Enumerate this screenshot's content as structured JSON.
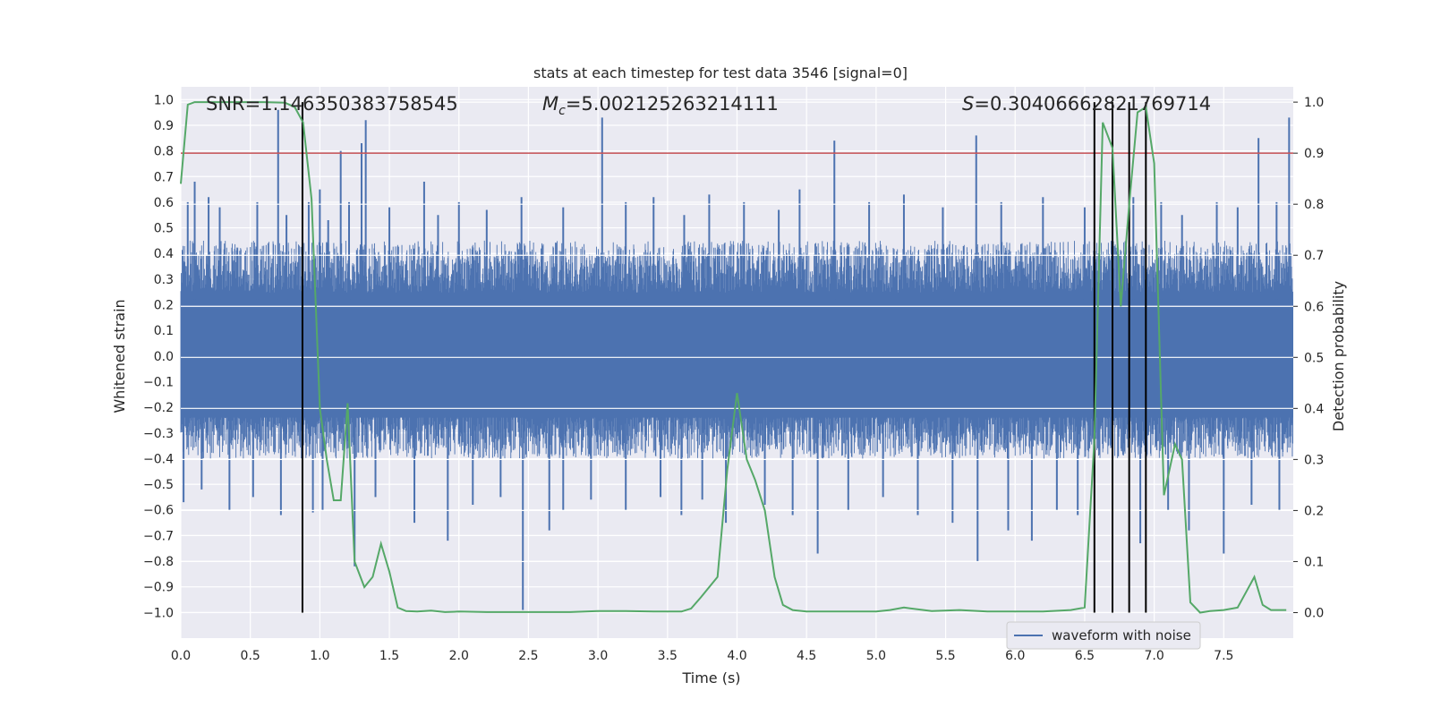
{
  "chart_data": {
    "type": "line",
    "title": "stats at each timestep for test data 3546 [signal=0]",
    "xlabel": "Time (s)",
    "ylabel": "Whitened strain",
    "y2label": "Detection probability",
    "xlim": [
      0,
      8
    ],
    "ylim": [
      -1.1,
      1.05
    ],
    "y2lim": [
      -0.05,
      1.03
    ],
    "xticks": [
      0.0,
      0.5,
      1.0,
      1.5,
      2.0,
      2.5,
      3.0,
      3.5,
      4.0,
      4.5,
      5.0,
      5.5,
      6.0,
      6.5,
      7.0,
      7.5
    ],
    "xtick_labels": [
      "0.0",
      "0.5",
      "1.0",
      "1.5",
      "2.0",
      "2.5",
      "3.0",
      "3.5",
      "4.0",
      "4.5",
      "5.0",
      "5.5",
      "6.0",
      "6.5",
      "7.0",
      "7.5"
    ],
    "yticks": [
      1.0,
      0.9,
      0.8,
      0.7,
      0.6,
      0.5,
      0.4,
      0.3,
      0.2,
      0.1,
      0.0,
      -0.1,
      -0.2,
      -0.3,
      -0.4,
      -0.5,
      -0.6,
      -0.7,
      -0.8,
      -0.9,
      -1.0
    ],
    "ytick_labels": [
      "1.0",
      "0.9",
      "0.8",
      "0.7",
      "0.6",
      "0.5",
      "0.4",
      "0.3",
      "0.2",
      "0.1",
      "0.0",
      "−0.1",
      "−0.2",
      "−0.3",
      "−0.4",
      "−0.5",
      "−0.6",
      "−0.7",
      "−0.8",
      "−0.9",
      "−1.0"
    ],
    "y2ticks": [
      1.0,
      0.9,
      0.8,
      0.7,
      0.6,
      0.5,
      0.4,
      0.3,
      0.2,
      0.1,
      0.0
    ],
    "y2tick_labels": [
      "1.0",
      "0.9",
      "0.8",
      "0.7",
      "0.6",
      "0.5",
      "0.4",
      "0.3",
      "0.2",
      "0.1",
      "0.0"
    ],
    "annotations": {
      "snr": "SNR=1.146350383758545",
      "mc_symbol": "M",
      "mc_sub": "c",
      "mc_value": "=5.002125263214111",
      "s_symbol": "S",
      "s_value": "=0.30406662821769714"
    },
    "threshold": {
      "value": 0.9,
      "axis": "right",
      "color": "#c44e52"
    },
    "vlines": [
      0.875,
      6.57,
      6.7,
      6.82,
      6.94
    ],
    "waveform": {
      "name": "waveform with noise",
      "color": "#4c72b0",
      "envelope_min": -0.4,
      "envelope_max": 0.45,
      "spikes": [
        {
          "t": 0.05,
          "v": 0.6
        },
        {
          "t": 0.1,
          "v": 0.68
        },
        {
          "t": 0.2,
          "v": 0.62
        },
        {
          "t": 0.28,
          "v": 0.58
        },
        {
          "t": 0.55,
          "v": 0.6
        },
        {
          "t": 0.7,
          "v": 0.96
        },
        {
          "t": 0.76,
          "v": 0.55
        },
        {
          "t": 0.92,
          "v": 0.6
        },
        {
          "t": 1.0,
          "v": 0.65
        },
        {
          "t": 1.06,
          "v": 0.53
        },
        {
          "t": 1.15,
          "v": 0.8
        },
        {
          "t": 1.21,
          "v": 0.6
        },
        {
          "t": 1.3,
          "v": 0.83
        },
        {
          "t": 1.33,
          "v": 0.92
        },
        {
          "t": 1.5,
          "v": 0.58
        },
        {
          "t": 1.75,
          "v": 0.68
        },
        {
          "t": 1.85,
          "v": 0.55
        },
        {
          "t": 2.0,
          "v": 0.6
        },
        {
          "t": 2.2,
          "v": 0.57
        },
        {
          "t": 2.45,
          "v": 0.62
        },
        {
          "t": 2.75,
          "v": 0.58
        },
        {
          "t": 3.03,
          "v": 0.93
        },
        {
          "t": 3.2,
          "v": 0.6
        },
        {
          "t": 3.4,
          "v": 0.62
        },
        {
          "t": 3.62,
          "v": 0.55
        },
        {
          "t": 3.8,
          "v": 0.63
        },
        {
          "t": 4.05,
          "v": 0.6
        },
        {
          "t": 4.3,
          "v": 0.57
        },
        {
          "t": 4.45,
          "v": 0.65
        },
        {
          "t": 4.7,
          "v": 0.84
        },
        {
          "t": 4.95,
          "v": 0.6
        },
        {
          "t": 5.2,
          "v": 0.63
        },
        {
          "t": 5.48,
          "v": 0.58
        },
        {
          "t": 5.72,
          "v": 0.86
        },
        {
          "t": 5.9,
          "v": 0.6
        },
        {
          "t": 6.2,
          "v": 0.62
        },
        {
          "t": 6.5,
          "v": 0.58
        },
        {
          "t": 6.7,
          "v": 0.68
        },
        {
          "t": 6.85,
          "v": 0.62
        },
        {
          "t": 7.05,
          "v": 0.6
        },
        {
          "t": 7.2,
          "v": 0.55
        },
        {
          "t": 7.45,
          "v": 0.6
        },
        {
          "t": 7.6,
          "v": 0.58
        },
        {
          "t": 7.75,
          "v": 0.85
        },
        {
          "t": 7.88,
          "v": 0.6
        },
        {
          "t": 7.97,
          "v": 0.93
        },
        {
          "t": 0.02,
          "v": -0.57
        },
        {
          "t": 0.15,
          "v": -0.52
        },
        {
          "t": 0.35,
          "v": -0.6
        },
        {
          "t": 0.52,
          "v": -0.55
        },
        {
          "t": 0.72,
          "v": -0.62
        },
        {
          "t": 0.95,
          "v": -0.61
        },
        {
          "t": 1.02,
          "v": -0.6
        },
        {
          "t": 1.25,
          "v": -0.82
        },
        {
          "t": 1.4,
          "v": -0.55
        },
        {
          "t": 1.68,
          "v": -0.65
        },
        {
          "t": 1.92,
          "v": -0.72
        },
        {
          "t": 2.1,
          "v": -0.58
        },
        {
          "t": 2.3,
          "v": -0.55
        },
        {
          "t": 2.46,
          "v": -0.99
        },
        {
          "t": 2.65,
          "v": -0.68
        },
        {
          "t": 2.75,
          "v": -0.6
        },
        {
          "t": 2.95,
          "v": -0.56
        },
        {
          "t": 3.2,
          "v": -0.6
        },
        {
          "t": 3.45,
          "v": -0.55
        },
        {
          "t": 3.6,
          "v": -0.62
        },
        {
          "t": 3.75,
          "v": -0.56
        },
        {
          "t": 3.92,
          "v": -0.65
        },
        {
          "t": 4.2,
          "v": -0.58
        },
        {
          "t": 4.4,
          "v": -0.62
        },
        {
          "t": 4.58,
          "v": -0.77
        },
        {
          "t": 4.8,
          "v": -0.6
        },
        {
          "t": 5.05,
          "v": -0.55
        },
        {
          "t": 5.3,
          "v": -0.62
        },
        {
          "t": 5.55,
          "v": -0.65
        },
        {
          "t": 5.73,
          "v": -0.8
        },
        {
          "t": 5.95,
          "v": -0.68
        },
        {
          "t": 6.12,
          "v": -0.72
        },
        {
          "t": 6.3,
          "v": -0.6
        },
        {
          "t": 6.45,
          "v": -0.62
        },
        {
          "t": 6.7,
          "v": -0.58
        },
        {
          "t": 6.9,
          "v": -0.73
        },
        {
          "t": 7.1,
          "v": -0.6
        },
        {
          "t": 7.25,
          "v": -0.68
        },
        {
          "t": 7.5,
          "v": -0.77
        },
        {
          "t": 7.7,
          "v": -0.58
        },
        {
          "t": 7.9,
          "v": -0.6
        }
      ]
    },
    "probability": {
      "color": "#55a868",
      "t": [
        0.0,
        0.05,
        0.1,
        0.2,
        0.4,
        0.6,
        0.75,
        0.82,
        0.88,
        0.94,
        1.0,
        1.05,
        1.1,
        1.15,
        1.2,
        1.25,
        1.32,
        1.38,
        1.44,
        1.5,
        1.56,
        1.62,
        1.7,
        1.8,
        1.9,
        2.0,
        2.2,
        2.5,
        2.8,
        3.0,
        3.2,
        3.4,
        3.6,
        3.67,
        3.74,
        3.8,
        3.86,
        3.93,
        4.0,
        4.07,
        4.13,
        4.2,
        4.27,
        4.33,
        4.4,
        4.5,
        4.7,
        5.0,
        5.1,
        5.2,
        5.4,
        5.6,
        5.8,
        6.0,
        6.2,
        6.4,
        6.5,
        6.57,
        6.63,
        6.7,
        6.76,
        6.82,
        6.88,
        6.94,
        7.0,
        7.07,
        7.15,
        7.2,
        7.26,
        7.33,
        7.4,
        7.5,
        7.6,
        7.66,
        7.72,
        7.78,
        7.84,
        7.9,
        7.95
      ],
      "p": [
        0.84,
        0.995,
        1.0,
        1.0,
        1.0,
        1.0,
        0.999,
        0.99,
        0.96,
        0.81,
        0.4,
        0.3,
        0.22,
        0.22,
        0.41,
        0.1,
        0.05,
        0.07,
        0.135,
        0.08,
        0.01,
        0.003,
        0.002,
        0.004,
        0.001,
        0.002,
        0.001,
        0.001,
        0.001,
        0.003,
        0.003,
        0.002,
        0.002,
        0.008,
        0.03,
        0.05,
        0.07,
        0.28,
        0.43,
        0.3,
        0.26,
        0.2,
        0.07,
        0.015,
        0.005,
        0.002,
        0.002,
        0.002,
        0.005,
        0.01,
        0.003,
        0.005,
        0.002,
        0.002,
        0.002,
        0.005,
        0.01,
        0.34,
        0.96,
        0.91,
        0.6,
        0.8,
        0.98,
        0.99,
        0.88,
        0.23,
        0.33,
        0.3,
        0.02,
        0.0,
        0.003,
        0.005,
        0.01,
        0.04,
        0.07,
        0.015,
        0.005,
        0.005,
        0.005
      ]
    },
    "legend": {
      "label": "waveform with noise",
      "placement": "lower-right"
    }
  }
}
